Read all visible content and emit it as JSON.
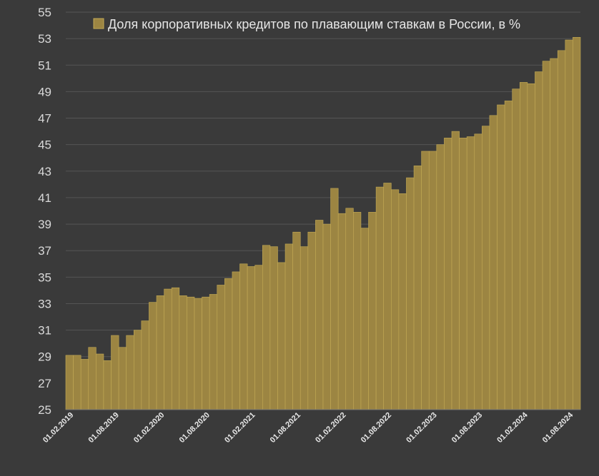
{
  "colors": {
    "background": "#3a3a3a",
    "bar_fill": "#9c8542",
    "bar_stroke": "#c4ab55",
    "grid": "#555555",
    "text": "#d9d9d9"
  },
  "chart_data": {
    "type": "bar",
    "title": "",
    "xlabel": "",
    "ylabel": "",
    "legend": "top",
    "grid": true,
    "ylim": [
      25,
      55
    ],
    "yticks": [
      25,
      27,
      29,
      31,
      33,
      35,
      37,
      39,
      41,
      43,
      45,
      47,
      49,
      51,
      53,
      55
    ],
    "xtick_labels": [
      "01.02.2019",
      "01.08.2019",
      "01.02.2020",
      "01.08.2020",
      "01.02.2021",
      "01.08.2021",
      "01.02.2022",
      "01.08.2022",
      "01.02.2023",
      "01.08.2023",
      "01.02.2024",
      "01.08.2024"
    ],
    "series": [
      {
        "name": "Доля корпоративных кредитов по плавающим ставкам в России, в %",
        "values": [
          29.1,
          29.1,
          28.8,
          29.7,
          29.2,
          28.7,
          30.6,
          29.7,
          30.6,
          31.0,
          31.7,
          33.1,
          33.6,
          34.1,
          34.2,
          33.6,
          33.5,
          33.4,
          33.5,
          33.7,
          34.4,
          34.9,
          35.4,
          36.0,
          35.8,
          35.9,
          37.4,
          37.3,
          36.1,
          37.5,
          38.4,
          37.3,
          38.4,
          39.3,
          39.0,
          41.7,
          39.8,
          40.2,
          39.9,
          38.7,
          39.9,
          41.8,
          42.1,
          41.6,
          41.3,
          42.5,
          43.4,
          44.5,
          44.5,
          45.0,
          45.5,
          46.0,
          45.5,
          45.6,
          45.8,
          46.4,
          47.2,
          48.0,
          48.3,
          49.2,
          49.7,
          49.6,
          50.5,
          51.3,
          51.5,
          52.1,
          52.9,
          53.1
        ]
      }
    ]
  }
}
